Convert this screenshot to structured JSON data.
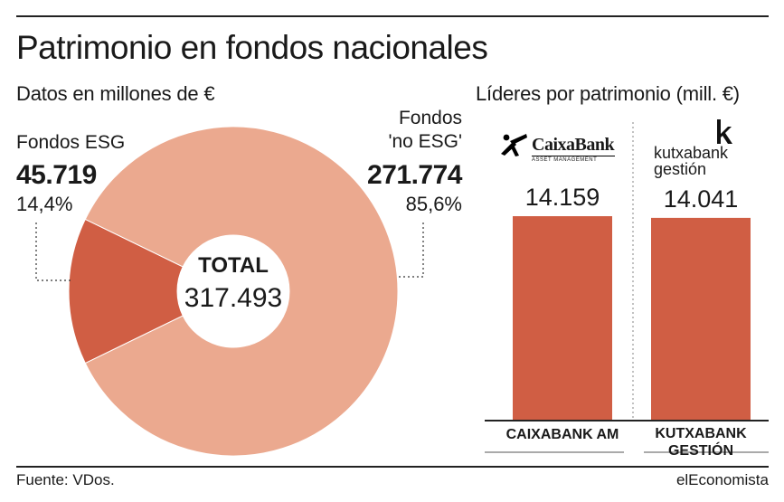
{
  "header": {
    "title": "Patrimonio en fondos nacionales",
    "subtitle_left": "Datos en millones de €",
    "subtitle_right": "Líderes por patrimonio (mill. €)"
  },
  "colors": {
    "esg": "#D05E44",
    "no_esg": "#EBA98F",
    "bar": "#D05E44",
    "rule": "#222222"
  },
  "donut": {
    "center_title": "TOTAL",
    "center_value": "317.493",
    "esg": {
      "label": "Fondos ESG",
      "value": "45.719",
      "pct": "14,4%"
    },
    "no_esg": {
      "label_line1": "Fondos",
      "label_line2": "'no ESG'",
      "value": "271.774",
      "pct": "85,6%"
    }
  },
  "logos": {
    "caixabank_name": "CaixaBank",
    "caixabank_sub": "ASSET MANAGEMENT",
    "kutxabank_line1": "kutxabank",
    "kutxabank_line2": "gestión"
  },
  "footer": {
    "source": "Fuente: VDos.",
    "brand": "elEconomista"
  },
  "chart_data": [
    {
      "type": "pie",
      "categories": [
        "Fondos ESG",
        "Fondos 'no ESG'"
      ],
      "values": [
        45.719,
        271.774
      ],
      "percent_labels": [
        "14,4%",
        "85,6%"
      ],
      "title": "Datos en millones de €",
      "total": 317.493
    },
    {
      "type": "bar",
      "categories": [
        "CAIXABANK AM",
        "KUTXABANK GESTIÓN"
      ],
      "values": [
        14.159,
        14.041
      ],
      "value_labels": [
        "14.159",
        "14.041"
      ],
      "title": "Líderes por patrimonio (mill. €)"
    }
  ]
}
